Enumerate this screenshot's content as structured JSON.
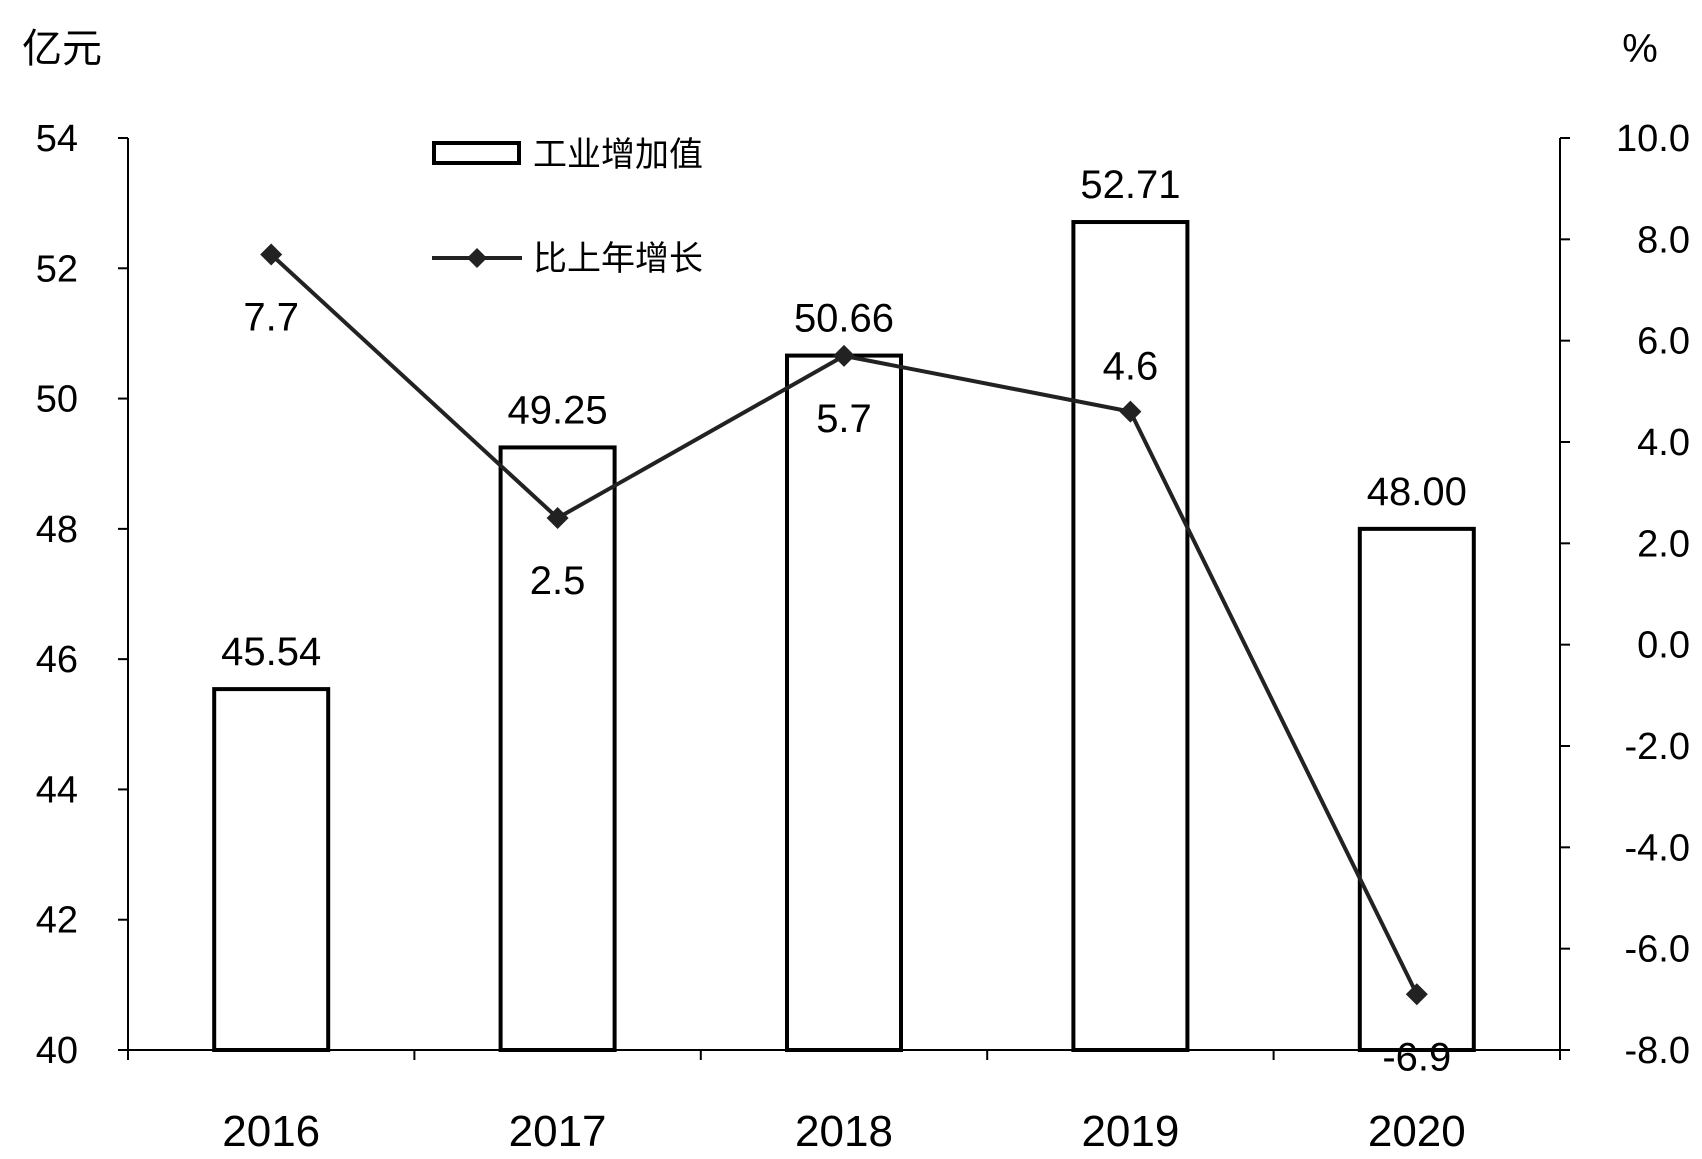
{
  "chart_data": {
    "type": "bar",
    "categories": [
      "2016",
      "2017",
      "2018",
      "2019",
      "2020"
    ],
    "series": [
      {
        "name": "工业增加值",
        "type": "bar",
        "axis": "left",
        "values": [
          45.54,
          49.25,
          50.66,
          52.71,
          48.0
        ],
        "labels": [
          "45.54",
          "49.25",
          "50.66",
          "52.71",
          "48.00"
        ]
      },
      {
        "name": "比上年增长",
        "type": "line",
        "axis": "right",
        "values": [
          7.7,
          2.5,
          5.7,
          4.6,
          -6.9
        ],
        "labels": [
          "7.7",
          "2.5",
          "5.7",
          "4.6",
          "-6.9"
        ]
      }
    ],
    "y_left": {
      "unit": "亿元",
      "ylim": [
        40,
        54
      ],
      "ticks": [
        "40",
        "42",
        "44",
        "46",
        "48",
        "50",
        "52",
        "54"
      ]
    },
    "y_right": {
      "unit": "%",
      "ylim": [
        -8,
        10
      ],
      "ticks": [
        "-8.0",
        "-6.0",
        "-4.0",
        "-2.0",
        "0.0",
        "2.0",
        "4.0",
        "6.0",
        "8.0",
        "10.0"
      ]
    },
    "grid": false,
    "legend": "top-left",
    "colors": {
      "bar_fill": "#ffffff",
      "bar_stroke": "#000000",
      "line": "#222222",
      "marker": "#222222"
    }
  }
}
